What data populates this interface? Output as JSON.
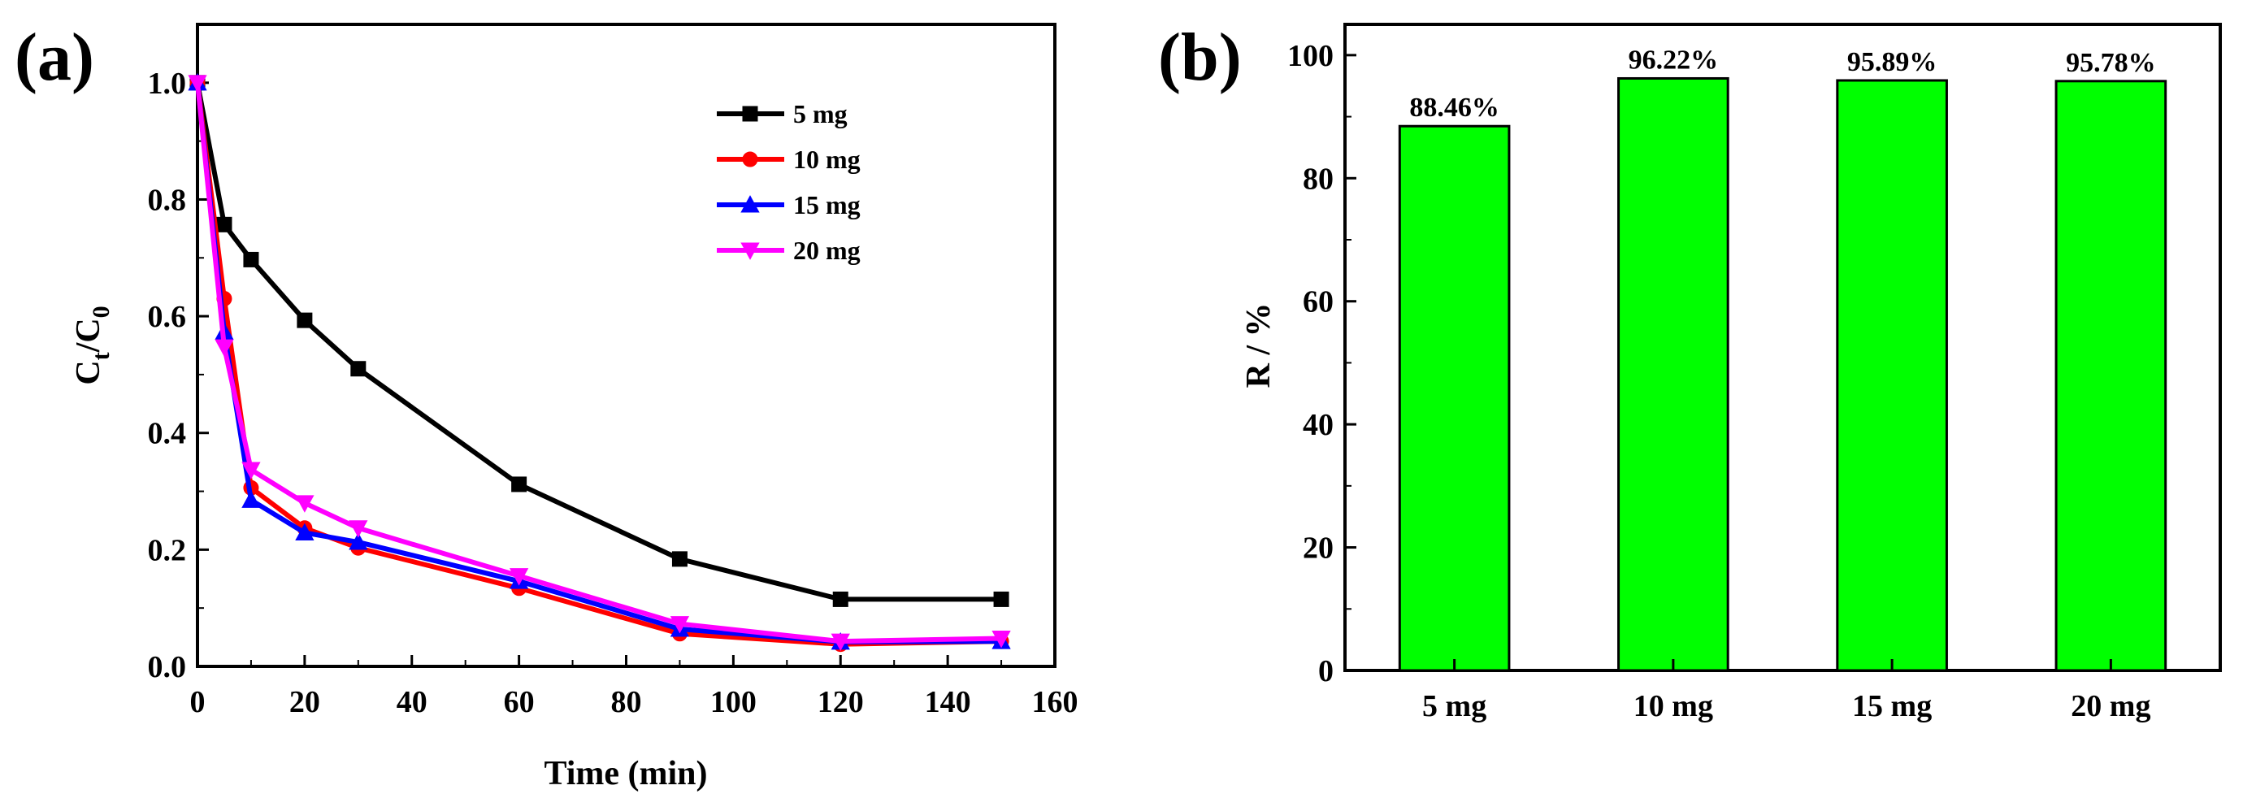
{
  "chart_data": [
    {
      "panel": "(a)",
      "type": "line",
      "xlabel": "Time (min)",
      "ylabel": {
        "main": "C",
        "sub1": "t",
        "sep": "/C",
        "sub2": "0"
      },
      "xlim": [
        0,
        160
      ],
      "ylim": [
        0,
        1.1
      ],
      "xticks": [
        "0",
        "20",
        "40",
        "60",
        "80",
        "100",
        "120",
        "140",
        "160"
      ],
      "yticks": [
        "0.0",
        "0.2",
        "0.4",
        "0.6",
        "0.8",
        "1.0"
      ],
      "x": [
        0,
        5,
        10,
        20,
        30,
        60,
        90,
        120,
        150
      ],
      "series": [
        {
          "name": "5 mg",
          "color": "#000000",
          "marker": "square",
          "values": [
            1.0,
            0.757,
            0.697,
            0.593,
            0.51,
            0.312,
            0.184,
            0.115,
            0.115
          ]
        },
        {
          "name": "10 mg",
          "color": "#ff0000",
          "marker": "circle",
          "values": [
            1.0,
            0.63,
            0.306,
            0.237,
            0.203,
            0.134,
            0.056,
            0.038,
            0.043
          ]
        },
        {
          "name": "15 mg",
          "color": "#0000ff",
          "marker": "triangle-up",
          "values": [
            1.0,
            0.573,
            0.285,
            0.229,
            0.213,
            0.146,
            0.064,
            0.042,
            0.043
          ]
        },
        {
          "name": "20 mg",
          "color": "#ff00ff",
          "marker": "triangle-down",
          "values": [
            1.0,
            0.547,
            0.337,
            0.28,
            0.237,
            0.155,
            0.073,
            0.043,
            0.048
          ]
        }
      ],
      "legend_position": "top-right"
    },
    {
      "panel": "(b)",
      "type": "bar",
      "categories": [
        "5 mg",
        "10 mg",
        "15 mg",
        "20 mg"
      ],
      "values": [
        88.46,
        96.22,
        95.89,
        95.78
      ],
      "labels": [
        "88.46%",
        "96.22%",
        "95.89%",
        "95.78%"
      ],
      "ylabel": "R / %",
      "ylim": [
        0,
        105
      ],
      "yticks": [
        "0",
        "20",
        "40",
        "60",
        "80",
        "100"
      ],
      "bar_color": "#00ff00"
    }
  ]
}
